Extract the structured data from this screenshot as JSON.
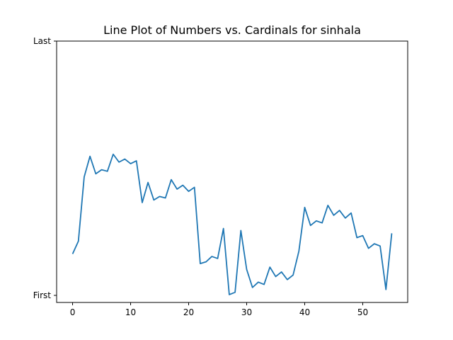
{
  "chart_data": {
    "type": "line",
    "title": "Line Plot of Numbers vs. Cardinals for sinhala",
    "xlabel": "",
    "ylabel": "",
    "xlim": [
      -2.75,
      57.75
    ],
    "ylim": [
      0,
      1
    ],
    "x_ticks": [
      0,
      10,
      20,
      30,
      40,
      50
    ],
    "y_ticks": [
      {
        "value": 0,
        "label": "First"
      },
      {
        "value": 1,
        "label": "Last"
      }
    ],
    "grid": false,
    "legend": "none",
    "series": [
      {
        "color": "#1f77b4",
        "x": [
          0,
          1,
          2,
          3,
          4,
          5,
          6,
          7,
          8,
          9,
          10,
          11,
          12,
          13,
          14,
          15,
          16,
          17,
          18,
          19,
          20,
          21,
          22,
          23,
          24,
          25,
          26,
          27,
          28,
          29,
          30,
          31,
          32,
          33,
          34,
          35,
          36,
          37,
          38,
          39,
          40,
          41,
          42,
          43,
          44,
          45,
          46,
          47,
          48,
          49,
          50,
          51,
          52,
          53,
          54,
          55
        ],
        "y": [
          0.163,
          0.213,
          0.466,
          0.547,
          0.478,
          0.494,
          0.488,
          0.555,
          0.524,
          0.536,
          0.518,
          0.529,
          0.365,
          0.444,
          0.375,
          0.389,
          0.383,
          0.455,
          0.418,
          0.433,
          0.409,
          0.425,
          0.125,
          0.132,
          0.153,
          0.145,
          0.263,
          0.003,
          0.012,
          0.255,
          0.102,
          0.031,
          0.052,
          0.043,
          0.111,
          0.074,
          0.092,
          0.062,
          0.08,
          0.174,
          0.346,
          0.275,
          0.293,
          0.285,
          0.354,
          0.315,
          0.334,
          0.304,
          0.324,
          0.227,
          0.235,
          0.185,
          0.203,
          0.194,
          0.023,
          0.244
        ]
      }
    ]
  }
}
